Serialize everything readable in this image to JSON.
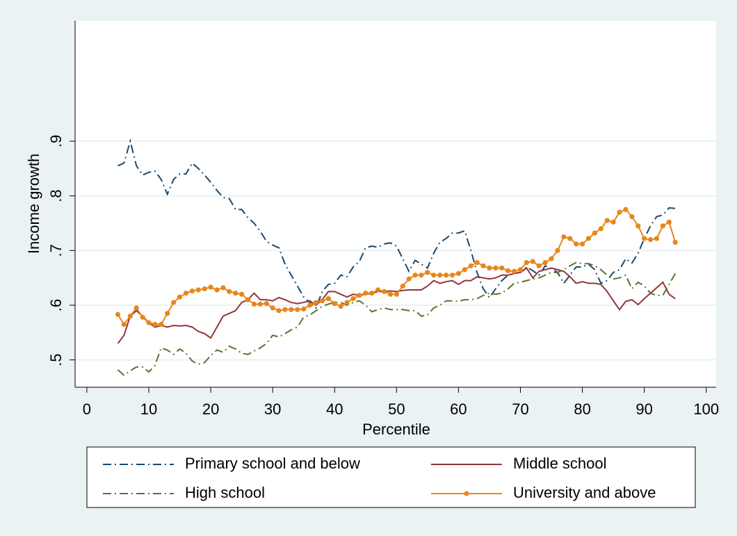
{
  "chart_data": {
    "type": "line",
    "x_label": "Percentile",
    "y_label": "Income growth",
    "x": [
      5,
      6,
      7,
      8,
      9,
      10,
      11,
      12,
      13,
      14,
      15,
      16,
      17,
      18,
      19,
      20,
      21,
      22,
      23,
      24,
      25,
      26,
      27,
      28,
      29,
      30,
      31,
      32,
      33,
      34,
      35,
      36,
      37,
      38,
      39,
      40,
      41,
      42,
      43,
      44,
      45,
      46,
      47,
      48,
      49,
      50,
      51,
      52,
      53,
      54,
      55,
      56,
      57,
      58,
      59,
      60,
      61,
      62,
      63,
      64,
      65,
      66,
      67,
      68,
      69,
      70,
      71,
      72,
      73,
      74,
      75,
      76,
      77,
      78,
      79,
      80,
      81,
      82,
      83,
      84,
      85,
      86,
      87,
      88,
      89,
      90,
      91,
      92,
      93,
      94,
      95
    ],
    "series": [
      {
        "name": "Primary school and below",
        "color": "#1a476f",
        "dash": "dash-dot",
        "markers": false,
        "values": [
          0.855,
          0.86,
          0.9,
          0.855,
          0.838,
          0.843,
          0.845,
          0.83,
          0.803,
          0.83,
          0.84,
          0.84,
          0.86,
          0.85,
          0.838,
          0.825,
          0.81,
          0.797,
          0.795,
          0.775,
          0.775,
          0.76,
          0.75,
          0.735,
          0.717,
          0.71,
          0.705,
          0.675,
          0.655,
          0.635,
          0.615,
          0.605,
          0.595,
          0.625,
          0.638,
          0.64,
          0.655,
          0.652,
          0.67,
          0.68,
          0.705,
          0.708,
          0.706,
          0.712,
          0.714,
          0.708,
          0.685,
          0.662,
          0.682,
          0.675,
          0.668,
          0.695,
          0.715,
          0.722,
          0.732,
          0.732,
          0.736,
          0.7,
          0.66,
          0.63,
          0.614,
          0.63,
          0.645,
          0.655,
          0.658,
          0.66,
          0.67,
          0.663,
          0.655,
          0.672,
          0.667,
          0.66,
          0.64,
          0.655,
          0.67,
          0.67,
          0.675,
          0.665,
          0.64,
          0.645,
          0.66,
          0.665,
          0.685,
          0.677,
          0.695,
          0.722,
          0.745,
          0.762,
          0.765,
          0.778,
          0.777
        ]
      },
      {
        "name": "Middle school",
        "color": "#90353b",
        "dash": "solid",
        "markers": false,
        "values": [
          0.53,
          0.545,
          0.58,
          0.59,
          0.58,
          0.568,
          0.56,
          0.563,
          0.56,
          0.563,
          0.562,
          0.563,
          0.56,
          0.552,
          0.548,
          0.54,
          0.56,
          0.58,
          0.585,
          0.59,
          0.605,
          0.61,
          0.622,
          0.61,
          0.61,
          0.608,
          0.614,
          0.61,
          0.605,
          0.603,
          0.605,
          0.608,
          0.6,
          0.61,
          0.625,
          0.625,
          0.62,
          0.615,
          0.62,
          0.618,
          0.62,
          0.622,
          0.625,
          0.625,
          0.626,
          0.625,
          0.627,
          0.628,
          0.628,
          0.628,
          0.635,
          0.645,
          0.64,
          0.643,
          0.645,
          0.638,
          0.645,
          0.645,
          0.652,
          0.65,
          0.648,
          0.65,
          0.655,
          0.655,
          0.658,
          0.66,
          0.668,
          0.65,
          0.662,
          0.665,
          0.668,
          0.665,
          0.662,
          0.652,
          0.64,
          0.643,
          0.64,
          0.64,
          0.638,
          0.625,
          0.608,
          0.592,
          0.607,
          0.61,
          0.601,
          0.612,
          0.622,
          0.632,
          0.642,
          0.62,
          0.612
        ]
      },
      {
        "name": "High school",
        "color": "#55752f",
        "dash": "dash-dot",
        "markers": false,
        "values": [
          0.482,
          0.472,
          0.48,
          0.487,
          0.487,
          0.478,
          0.49,
          0.522,
          0.518,
          0.51,
          0.52,
          0.512,
          0.498,
          0.492,
          0.495,
          0.508,
          0.518,
          0.514,
          0.525,
          0.52,
          0.512,
          0.51,
          0.516,
          0.522,
          0.53,
          0.545,
          0.542,
          0.548,
          0.555,
          0.56,
          0.578,
          0.582,
          0.59,
          0.598,
          0.602,
          0.605,
          0.605,
          0.6,
          0.605,
          0.608,
          0.6,
          0.588,
          0.592,
          0.595,
          0.592,
          0.592,
          0.592,
          0.59,
          0.59,
          0.58,
          0.582,
          0.595,
          0.6,
          0.608,
          0.608,
          0.607,
          0.61,
          0.61,
          0.612,
          0.618,
          0.622,
          0.62,
          0.622,
          0.63,
          0.64,
          0.642,
          0.645,
          0.648,
          0.65,
          0.655,
          0.66,
          0.66,
          0.665,
          0.672,
          0.678,
          0.676,
          0.676,
          0.672,
          0.665,
          0.655,
          0.648,
          0.65,
          0.655,
          0.63,
          0.642,
          0.635,
          0.622,
          0.618,
          0.618,
          0.638,
          0.658
        ]
      },
      {
        "name": "University and above",
        "color": "#e8861a",
        "dash": "solid",
        "markers": true,
        "values": [
          0.583,
          0.565,
          0.58,
          0.595,
          0.578,
          0.568,
          0.565,
          0.565,
          0.585,
          0.605,
          0.615,
          0.622,
          0.626,
          0.628,
          0.63,
          0.633,
          0.628,
          0.632,
          0.625,
          0.622,
          0.62,
          0.61,
          0.602,
          0.602,
          0.603,
          0.595,
          0.59,
          0.592,
          0.592,
          0.592,
          0.593,
          0.6,
          0.605,
          0.608,
          0.612,
          0.603,
          0.598,
          0.605,
          0.612,
          0.618,
          0.622,
          0.622,
          0.628,
          0.625,
          0.62,
          0.62,
          0.635,
          0.648,
          0.655,
          0.655,
          0.66,
          0.655,
          0.655,
          0.655,
          0.655,
          0.658,
          0.665,
          0.672,
          0.678,
          0.672,
          0.668,
          0.668,
          0.668,
          0.663,
          0.662,
          0.665,
          0.678,
          0.68,
          0.672,
          0.678,
          0.685,
          0.7,
          0.725,
          0.722,
          0.712,
          0.712,
          0.722,
          0.732,
          0.74,
          0.755,
          0.752,
          0.77,
          0.775,
          0.762,
          0.745,
          0.722,
          0.72,
          0.722,
          0.745,
          0.752,
          0.715
        ]
      }
    ],
    "xlim": [
      -1.9,
      101.6
    ],
    "ylim": [
      0.45,
      1.12
    ],
    "xticks": [
      0,
      10,
      20,
      30,
      40,
      50,
      60,
      70,
      80,
      90,
      100
    ],
    "yticks": [
      {
        "value": 0.5,
        "label": ".5"
      },
      {
        "value": 0.6,
        "label": ".6"
      },
      {
        "value": 0.7,
        "label": ".7"
      },
      {
        "value": 0.8,
        "label": ".8"
      },
      {
        "value": 0.9,
        "label": ".9"
      }
    ],
    "grid": true,
    "legend": "bottom"
  }
}
